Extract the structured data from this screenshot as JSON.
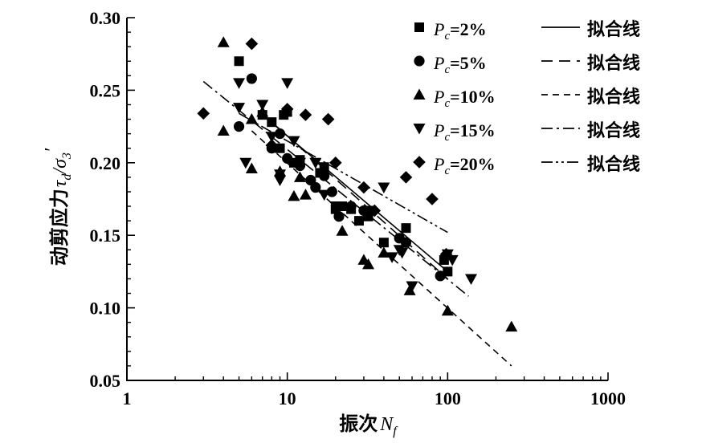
{
  "chart_data": {
    "type": "scatter",
    "xscale": "log",
    "xlim": [
      1,
      1000
    ],
    "ylim": [
      0.05,
      0.3
    ],
    "x_ticks": [
      1,
      10,
      100,
      1000
    ],
    "x_tick_labels": [
      "1",
      "10",
      "100",
      "1000"
    ],
    "y_ticks": [
      0.05,
      0.1,
      0.15,
      0.2,
      0.25,
      0.3
    ],
    "y_tick_labels": [
      "0.05",
      "0.10",
      "0.15",
      "0.20",
      "0.25",
      "0.30"
    ],
    "xlabel_main": "振次",
    "xlabel_sym": "N",
    "xlabel_sub": "f",
    "ylabel_main": "动剪应力",
    "ylabel_sym": "τ",
    "ylabel_sub": "d",
    "ylabel_sep": "/",
    "ylabel_den": "σ",
    "ylabel_den_sub": "3",
    "ylabel_prime": "′",
    "grid": false,
    "legend_position": "top-right",
    "series": [
      {
        "label_sym": "P",
        "label_sub": "c",
        "label_value": "=2%",
        "fit_label": "拟合线",
        "marker": "square",
        "line_style": "solid",
        "points": [
          [
            5,
            0.27
          ],
          [
            7,
            0.233
          ],
          [
            8,
            0.228
          ],
          [
            9,
            0.21
          ],
          [
            9.5,
            0.233
          ],
          [
            10,
            0.235
          ],
          [
            11,
            0.2
          ],
          [
            12,
            0.202
          ],
          [
            16,
            0.193
          ],
          [
            17,
            0.197
          ],
          [
            20,
            0.168
          ],
          [
            22,
            0.17
          ],
          [
            25,
            0.168
          ],
          [
            28,
            0.16
          ],
          [
            32,
            0.163
          ],
          [
            40,
            0.145
          ],
          [
            55,
            0.155
          ],
          [
            95,
            0.133
          ],
          [
            100,
            0.125
          ]
        ],
        "fit": [
          [
            7,
            0.233
          ],
          [
            100,
            0.125
          ]
        ]
      },
      {
        "label_sym": "P",
        "label_sub": "c",
        "label_value": "=5%",
        "fit_label": "拟合线",
        "marker": "circle",
        "line_style": "dashed",
        "points": [
          [
            5,
            0.225
          ],
          [
            6,
            0.258
          ],
          [
            8,
            0.21
          ],
          [
            9,
            0.22
          ],
          [
            10,
            0.203
          ],
          [
            12,
            0.198
          ],
          [
            14,
            0.188
          ],
          [
            15,
            0.183
          ],
          [
            17,
            0.191
          ],
          [
            19,
            0.18
          ],
          [
            21,
            0.163
          ],
          [
            25,
            0.17
          ],
          [
            30,
            0.167
          ],
          [
            50,
            0.148
          ],
          [
            55,
            0.145
          ],
          [
            90,
            0.122
          ]
        ],
        "fit": [
          [
            8,
            0.228
          ],
          [
            100,
            0.12
          ]
        ]
      },
      {
        "label_sym": "P",
        "label_sub": "c",
        "label_value": "=10%",
        "fit_label": "拟合线",
        "marker": "triangle-up",
        "line_style": "short-dashed",
        "points": [
          [
            4,
            0.283
          ],
          [
            4,
            0.222
          ],
          [
            6,
            0.23
          ],
          [
            6,
            0.196
          ],
          [
            7,
            0.235
          ],
          [
            9,
            0.194
          ],
          [
            11,
            0.177
          ],
          [
            12,
            0.19
          ],
          [
            13,
            0.178
          ],
          [
            22,
            0.153
          ],
          [
            30,
            0.133
          ],
          [
            32,
            0.13
          ],
          [
            40,
            0.138
          ],
          [
            58,
            0.112
          ],
          [
            100,
            0.098
          ],
          [
            250,
            0.087
          ]
        ],
        "fit": [
          [
            6,
            0.222
          ],
          [
            250,
            0.06
          ]
        ]
      },
      {
        "label_sym": "P",
        "label_sub": "c",
        "label_value": "=15%",
        "fit_label": "拟合线",
        "marker": "triangle-down",
        "line_style": "dash-dot",
        "points": [
          [
            5,
            0.255
          ],
          [
            5,
            0.238
          ],
          [
            5.5,
            0.2
          ],
          [
            7,
            0.24
          ],
          [
            8,
            0.218
          ],
          [
            9,
            0.192
          ],
          [
            9,
            0.188
          ],
          [
            10,
            0.255
          ],
          [
            11,
            0.215
          ],
          [
            12,
            0.2
          ],
          [
            15,
            0.2
          ],
          [
            17,
            0.178
          ],
          [
            20,
            0.17
          ],
          [
            33,
            0.167
          ],
          [
            40,
            0.183
          ],
          [
            45,
            0.135
          ],
          [
            50,
            0.14
          ],
          [
            52,
            0.138
          ],
          [
            60,
            0.115
          ],
          [
            100,
            0.137
          ],
          [
            107,
            0.133
          ],
          [
            140,
            0.12
          ]
        ],
        "fit": [
          [
            3,
            0.256
          ],
          [
            135,
            0.108
          ]
        ]
      },
      {
        "label_sym": "P",
        "label_sub": "c",
        "label_value": "=20%",
        "fit_label": "拟合线",
        "marker": "diamond",
        "line_style": "dash-dot-dot",
        "points": [
          [
            3,
            0.234
          ],
          [
            6,
            0.282
          ],
          [
            8,
            0.212
          ],
          [
            10,
            0.237
          ],
          [
            13,
            0.233
          ],
          [
            18,
            0.23
          ],
          [
            20,
            0.2
          ],
          [
            30,
            0.183
          ],
          [
            35,
            0.167
          ],
          [
            55,
            0.19
          ],
          [
            80,
            0.175
          ],
          [
            98,
            0.137
          ]
        ],
        "fit": [
          [
            5,
            0.234
          ],
          [
            100,
            0.152
          ]
        ]
      }
    ]
  }
}
